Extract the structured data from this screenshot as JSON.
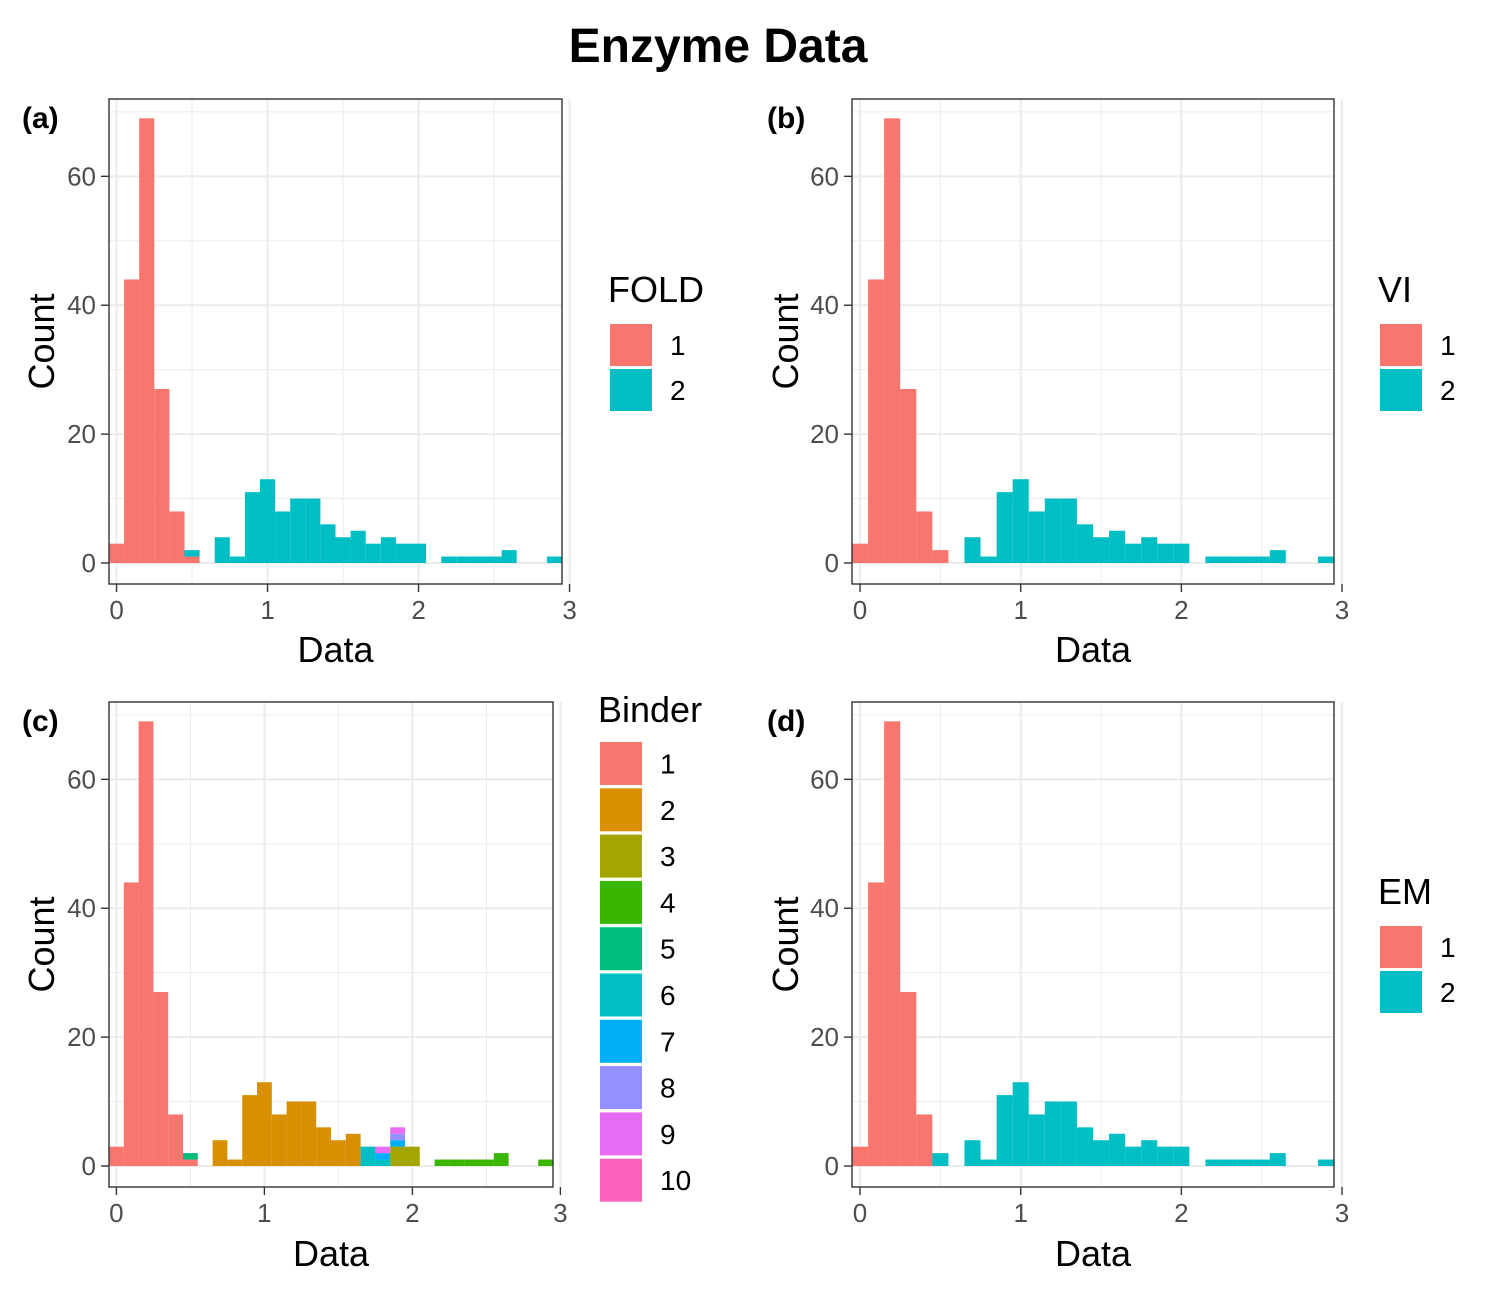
{
  "title": "Enzyme Data",
  "colors": {
    "c1": "#F8766D",
    "c2": "#00BFC4",
    "b1": "#F8766D",
    "b2": "#D89000",
    "b3": "#A3A500",
    "b4": "#39B600",
    "b5": "#00BF7D",
    "b6": "#00BFC4",
    "b7": "#00B0F6",
    "b8": "#9590FF",
    "b9": "#E76BF3",
    "b10": "#FF62BC",
    "grid": "#EBEBEB",
    "axis_text": "#4D4D4D"
  },
  "chart_data": [
    {
      "panel": "(a)",
      "type": "bar",
      "stacked": true,
      "title": "",
      "xlabel": "Data",
      "ylabel": "Count",
      "xlim": [
        -0.05,
        2.95
      ],
      "ylim": [
        0,
        72
      ],
      "xticks": [
        0,
        1,
        2,
        3
      ],
      "yticks": [
        0,
        20,
        40,
        60
      ],
      "grid": true,
      "legend_title": "FOLD",
      "legend_position": "right",
      "legend": [
        {
          "label": "1",
          "color": "#F8766D"
        },
        {
          "label": "2",
          "color": "#00BFC4"
        }
      ],
      "bin_width": 0.1,
      "bins": [
        -0.05,
        0.05,
        0.15,
        0.25,
        0.35,
        0.45,
        0.55,
        0.65,
        0.75,
        0.85,
        0.95,
        1.05,
        1.15,
        1.25,
        1.35,
        1.45,
        1.55,
        1.65,
        1.75,
        1.85,
        1.95,
        2.05,
        2.15,
        2.25,
        2.35,
        2.45,
        2.55,
        2.65,
        2.75,
        2.85
      ],
      "series": [
        {
          "name": "1",
          "color": "#F8766D",
          "values": [
            3,
            44,
            69,
            27,
            8,
            1,
            0,
            0,
            0,
            0,
            0,
            0,
            0,
            0,
            0,
            0,
            0,
            0,
            0,
            0,
            0,
            0,
            0,
            0,
            0,
            0,
            0,
            0,
            0,
            0
          ]
        },
        {
          "name": "2",
          "color": "#00BFC4",
          "values": [
            0,
            0,
            0,
            0,
            0,
            1,
            0,
            4,
            1,
            11,
            13,
            8,
            10,
            10,
            6,
            4,
            5,
            3,
            4,
            3,
            3,
            0,
            1,
            1,
            1,
            1,
            2,
            0,
            0,
            1
          ]
        }
      ]
    },
    {
      "panel": "(b)",
      "type": "bar",
      "stacked": true,
      "title": "",
      "xlabel": "Data",
      "ylabel": "Count",
      "xlim": [
        -0.05,
        2.95
      ],
      "ylim": [
        0,
        72
      ],
      "xticks": [
        0,
        1,
        2,
        3
      ],
      "yticks": [
        0,
        20,
        40,
        60
      ],
      "grid": true,
      "legend_title": "VI",
      "legend_position": "right",
      "legend": [
        {
          "label": "1",
          "color": "#F8766D"
        },
        {
          "label": "2",
          "color": "#00BFC4"
        }
      ],
      "bin_width": 0.1,
      "bins": [
        -0.05,
        0.05,
        0.15,
        0.25,
        0.35,
        0.45,
        0.55,
        0.65,
        0.75,
        0.85,
        0.95,
        1.05,
        1.15,
        1.25,
        1.35,
        1.45,
        1.55,
        1.65,
        1.75,
        1.85,
        1.95,
        2.05,
        2.15,
        2.25,
        2.35,
        2.45,
        2.55,
        2.65,
        2.75,
        2.85
      ],
      "series": [
        {
          "name": "1",
          "color": "#F8766D",
          "values": [
            3,
            44,
            69,
            27,
            8,
            2,
            0,
            0,
            0,
            0,
            0,
            0,
            0,
            0,
            0,
            0,
            0,
            0,
            0,
            0,
            0,
            0,
            0,
            0,
            0,
            0,
            0,
            0,
            0,
            0
          ]
        },
        {
          "name": "2",
          "color": "#00BFC4",
          "values": [
            0,
            0,
            0,
            0,
            0,
            0,
            0,
            4,
            1,
            11,
            13,
            8,
            10,
            10,
            6,
            4,
            5,
            3,
            4,
            3,
            3,
            0,
            1,
            1,
            1,
            1,
            2,
            0,
            0,
            1
          ]
        }
      ]
    },
    {
      "panel": "(c)",
      "type": "bar",
      "stacked": true,
      "title": "",
      "xlabel": "Data",
      "ylabel": "Count",
      "xlim": [
        -0.05,
        2.95
      ],
      "ylim": [
        0,
        72
      ],
      "xticks": [
        0,
        1,
        2,
        3
      ],
      "yticks": [
        0,
        20,
        40,
        60
      ],
      "grid": true,
      "legend_title": "Binder",
      "legend_position": "right",
      "legend": [
        {
          "label": "1",
          "color": "#F8766D"
        },
        {
          "label": "2",
          "color": "#D89000"
        },
        {
          "label": "3",
          "color": "#A3A500"
        },
        {
          "label": "4",
          "color": "#39B600"
        },
        {
          "label": "5",
          "color": "#00BF7D"
        },
        {
          "label": "6",
          "color": "#00BFC4"
        },
        {
          "label": "7",
          "color": "#00B0F6"
        },
        {
          "label": "8",
          "color": "#9590FF"
        },
        {
          "label": "9",
          "color": "#E76BF3"
        },
        {
          "label": "10",
          "color": "#FF62BC"
        }
      ],
      "bin_width": 0.1,
      "bins": [
        -0.05,
        0.05,
        0.15,
        0.25,
        0.35,
        0.45,
        0.55,
        0.65,
        0.75,
        0.85,
        0.95,
        1.05,
        1.15,
        1.25,
        1.35,
        1.45,
        1.55,
        1.65,
        1.75,
        1.85,
        1.95,
        2.05,
        2.15,
        2.25,
        2.35,
        2.45,
        2.55,
        2.65,
        2.75,
        2.85
      ],
      "series": [
        {
          "name": "1",
          "color": "#F8766D",
          "values": [
            3,
            44,
            69,
            27,
            8,
            1,
            0,
            0,
            0,
            0,
            0,
            0,
            0,
            0,
            0,
            0,
            0,
            0,
            0,
            0,
            0,
            0,
            0,
            0,
            0,
            0,
            0,
            0,
            0,
            0
          ]
        },
        {
          "name": "2",
          "color": "#D89000",
          "values": [
            0,
            0,
            0,
            0,
            0,
            0,
            0,
            4,
            1,
            11,
            13,
            8,
            10,
            10,
            6,
            4,
            5,
            0,
            0,
            0,
            0,
            0,
            0,
            0,
            0,
            0,
            0,
            0,
            0,
            0
          ]
        },
        {
          "name": "3",
          "color": "#A3A500",
          "values": [
            0,
            0,
            0,
            0,
            0,
            0,
            0,
            0,
            0,
            0,
            0,
            0,
            0,
            0,
            0,
            0,
            0,
            0,
            0,
            3,
            3,
            0,
            0,
            0,
            0,
            0,
            0,
            0,
            0,
            0
          ]
        },
        {
          "name": "4",
          "color": "#39B600",
          "values": [
            0,
            0,
            0,
            0,
            0,
            0,
            0,
            0,
            0,
            0,
            0,
            0,
            0,
            0,
            0,
            0,
            0,
            0,
            0,
            0,
            0,
            0,
            1,
            1,
            1,
            1,
            2,
            0,
            0,
            1
          ]
        },
        {
          "name": "5",
          "color": "#00BF7D",
          "values": [
            0,
            0,
            0,
            0,
            0,
            1,
            0,
            0,
            0,
            0,
            0,
            0,
            0,
            0,
            0,
            0,
            0,
            0,
            0,
            0,
            0,
            0,
            0,
            0,
            0,
            0,
            0,
            0,
            0,
            0
          ]
        },
        {
          "name": "6",
          "color": "#00BFC4",
          "values": [
            0,
            0,
            0,
            0,
            0,
            0,
            0,
            0,
            0,
            0,
            0,
            0,
            0,
            0,
            0,
            0,
            0,
            3,
            1,
            0,
            0,
            0,
            0,
            0,
            0,
            0,
            0,
            0,
            0,
            0
          ]
        },
        {
          "name": "7",
          "color": "#00B0F6",
          "values": [
            0,
            0,
            0,
            0,
            0,
            0,
            0,
            0,
            0,
            0,
            0,
            0,
            0,
            0,
            0,
            0,
            0,
            0,
            1,
            1,
            0,
            0,
            0,
            0,
            0,
            0,
            0,
            0,
            0,
            0
          ]
        },
        {
          "name": "8",
          "color": "#9590FF",
          "values": [
            0,
            0,
            0,
            0,
            0,
            0,
            0,
            0,
            0,
            0,
            0,
            0,
            0,
            0,
            0,
            0,
            0,
            0,
            0,
            1,
            0,
            0,
            0,
            0,
            0,
            0,
            0,
            0,
            0,
            0
          ]
        },
        {
          "name": "9",
          "color": "#E76BF3",
          "values": [
            0,
            0,
            0,
            0,
            0,
            0,
            0,
            0,
            0,
            0,
            0,
            0,
            0,
            0,
            0,
            0,
            0,
            0,
            1,
            1,
            0,
            0,
            0,
            0,
            0,
            0,
            0,
            0,
            0,
            0
          ]
        },
        {
          "name": "10",
          "color": "#FF62BC",
          "values": [
            0,
            0,
            0,
            0,
            0,
            0,
            0,
            0,
            0,
            0,
            0,
            0,
            0,
            0,
            0,
            0,
            0,
            0,
            0,
            0,
            0,
            0,
            0,
            0,
            0,
            0,
            0,
            0,
            0,
            0
          ]
        }
      ]
    },
    {
      "panel": "(d)",
      "type": "bar",
      "stacked": true,
      "title": "",
      "xlabel": "Data",
      "ylabel": "Count",
      "xlim": [
        -0.05,
        2.95
      ],
      "ylim": [
        0,
        72
      ],
      "xticks": [
        0,
        1,
        2,
        3
      ],
      "yticks": [
        0,
        20,
        40,
        60
      ],
      "grid": true,
      "legend_title": "EM",
      "legend_position": "right",
      "legend": [
        {
          "label": "1",
          "color": "#F8766D"
        },
        {
          "label": "2",
          "color": "#00BFC4"
        }
      ],
      "bin_width": 0.1,
      "bins": [
        -0.05,
        0.05,
        0.15,
        0.25,
        0.35,
        0.45,
        0.55,
        0.65,
        0.75,
        0.85,
        0.95,
        1.05,
        1.15,
        1.25,
        1.35,
        1.45,
        1.55,
        1.65,
        1.75,
        1.85,
        1.95,
        2.05,
        2.15,
        2.25,
        2.35,
        2.45,
        2.55,
        2.65,
        2.75,
        2.85
      ],
      "series": [
        {
          "name": "1",
          "color": "#F8766D",
          "values": [
            3,
            44,
            69,
            27,
            8,
            0,
            0,
            0,
            0,
            0,
            0,
            0,
            0,
            0,
            0,
            0,
            0,
            0,
            0,
            0,
            0,
            0,
            0,
            0,
            0,
            0,
            0,
            0,
            0,
            0
          ]
        },
        {
          "name": "2",
          "color": "#00BFC4",
          "values": [
            0,
            0,
            0,
            0,
            0,
            2,
            0,
            4,
            1,
            11,
            13,
            8,
            10,
            10,
            6,
            4,
            5,
            3,
            4,
            3,
            3,
            0,
            1,
            1,
            1,
            1,
            2,
            0,
            0,
            1
          ]
        }
      ]
    }
  ]
}
